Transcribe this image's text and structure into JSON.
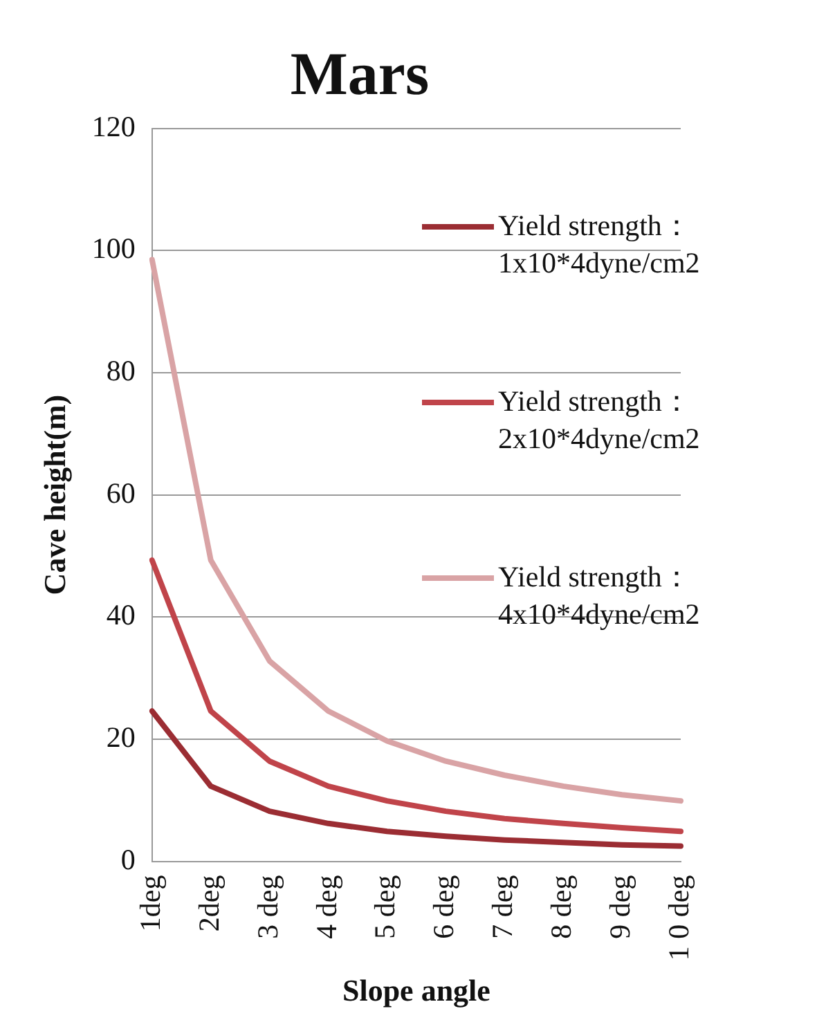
{
  "chart_data": {
    "type": "line",
    "title": "Mars",
    "xlabel": "Slope angle",
    "ylabel": "Cave height(m)",
    "categories": [
      "1deg",
      "2deg",
      "3 deg",
      "4 deg",
      "5 deg",
      "6 deg",
      "7 deg",
      "8 deg",
      "9 deg",
      "1 0 deg"
    ],
    "series": [
      {
        "name": "Yield strength：1x10*4dyne/cm2",
        "color": "#9b2d33",
        "values": [
          24.6,
          12.3,
          8.2,
          6.2,
          4.9,
          4.1,
          3.5,
          3.1,
          2.7,
          2.5
        ]
      },
      {
        "name": "Yield strength：2x10*4dyne/cm2",
        "color": "#c0444a",
        "values": [
          49.3,
          24.6,
          16.4,
          12.3,
          9.9,
          8.2,
          7.0,
          6.2,
          5.5,
          4.9
        ]
      },
      {
        "name": "Yield strength：4x10*4dyne/cm2",
        "color": "#d9a3a5",
        "values": [
          98.5,
          49.3,
          32.8,
          24.6,
          19.7,
          16.4,
          14.1,
          12.3,
          10.9,
          9.9
        ]
      }
    ],
    "ylim": [
      0,
      120
    ],
    "yticks": [
      0,
      20,
      40,
      60,
      80,
      100,
      120
    ],
    "grid": "y",
    "legend": "right",
    "marker": "none"
  }
}
